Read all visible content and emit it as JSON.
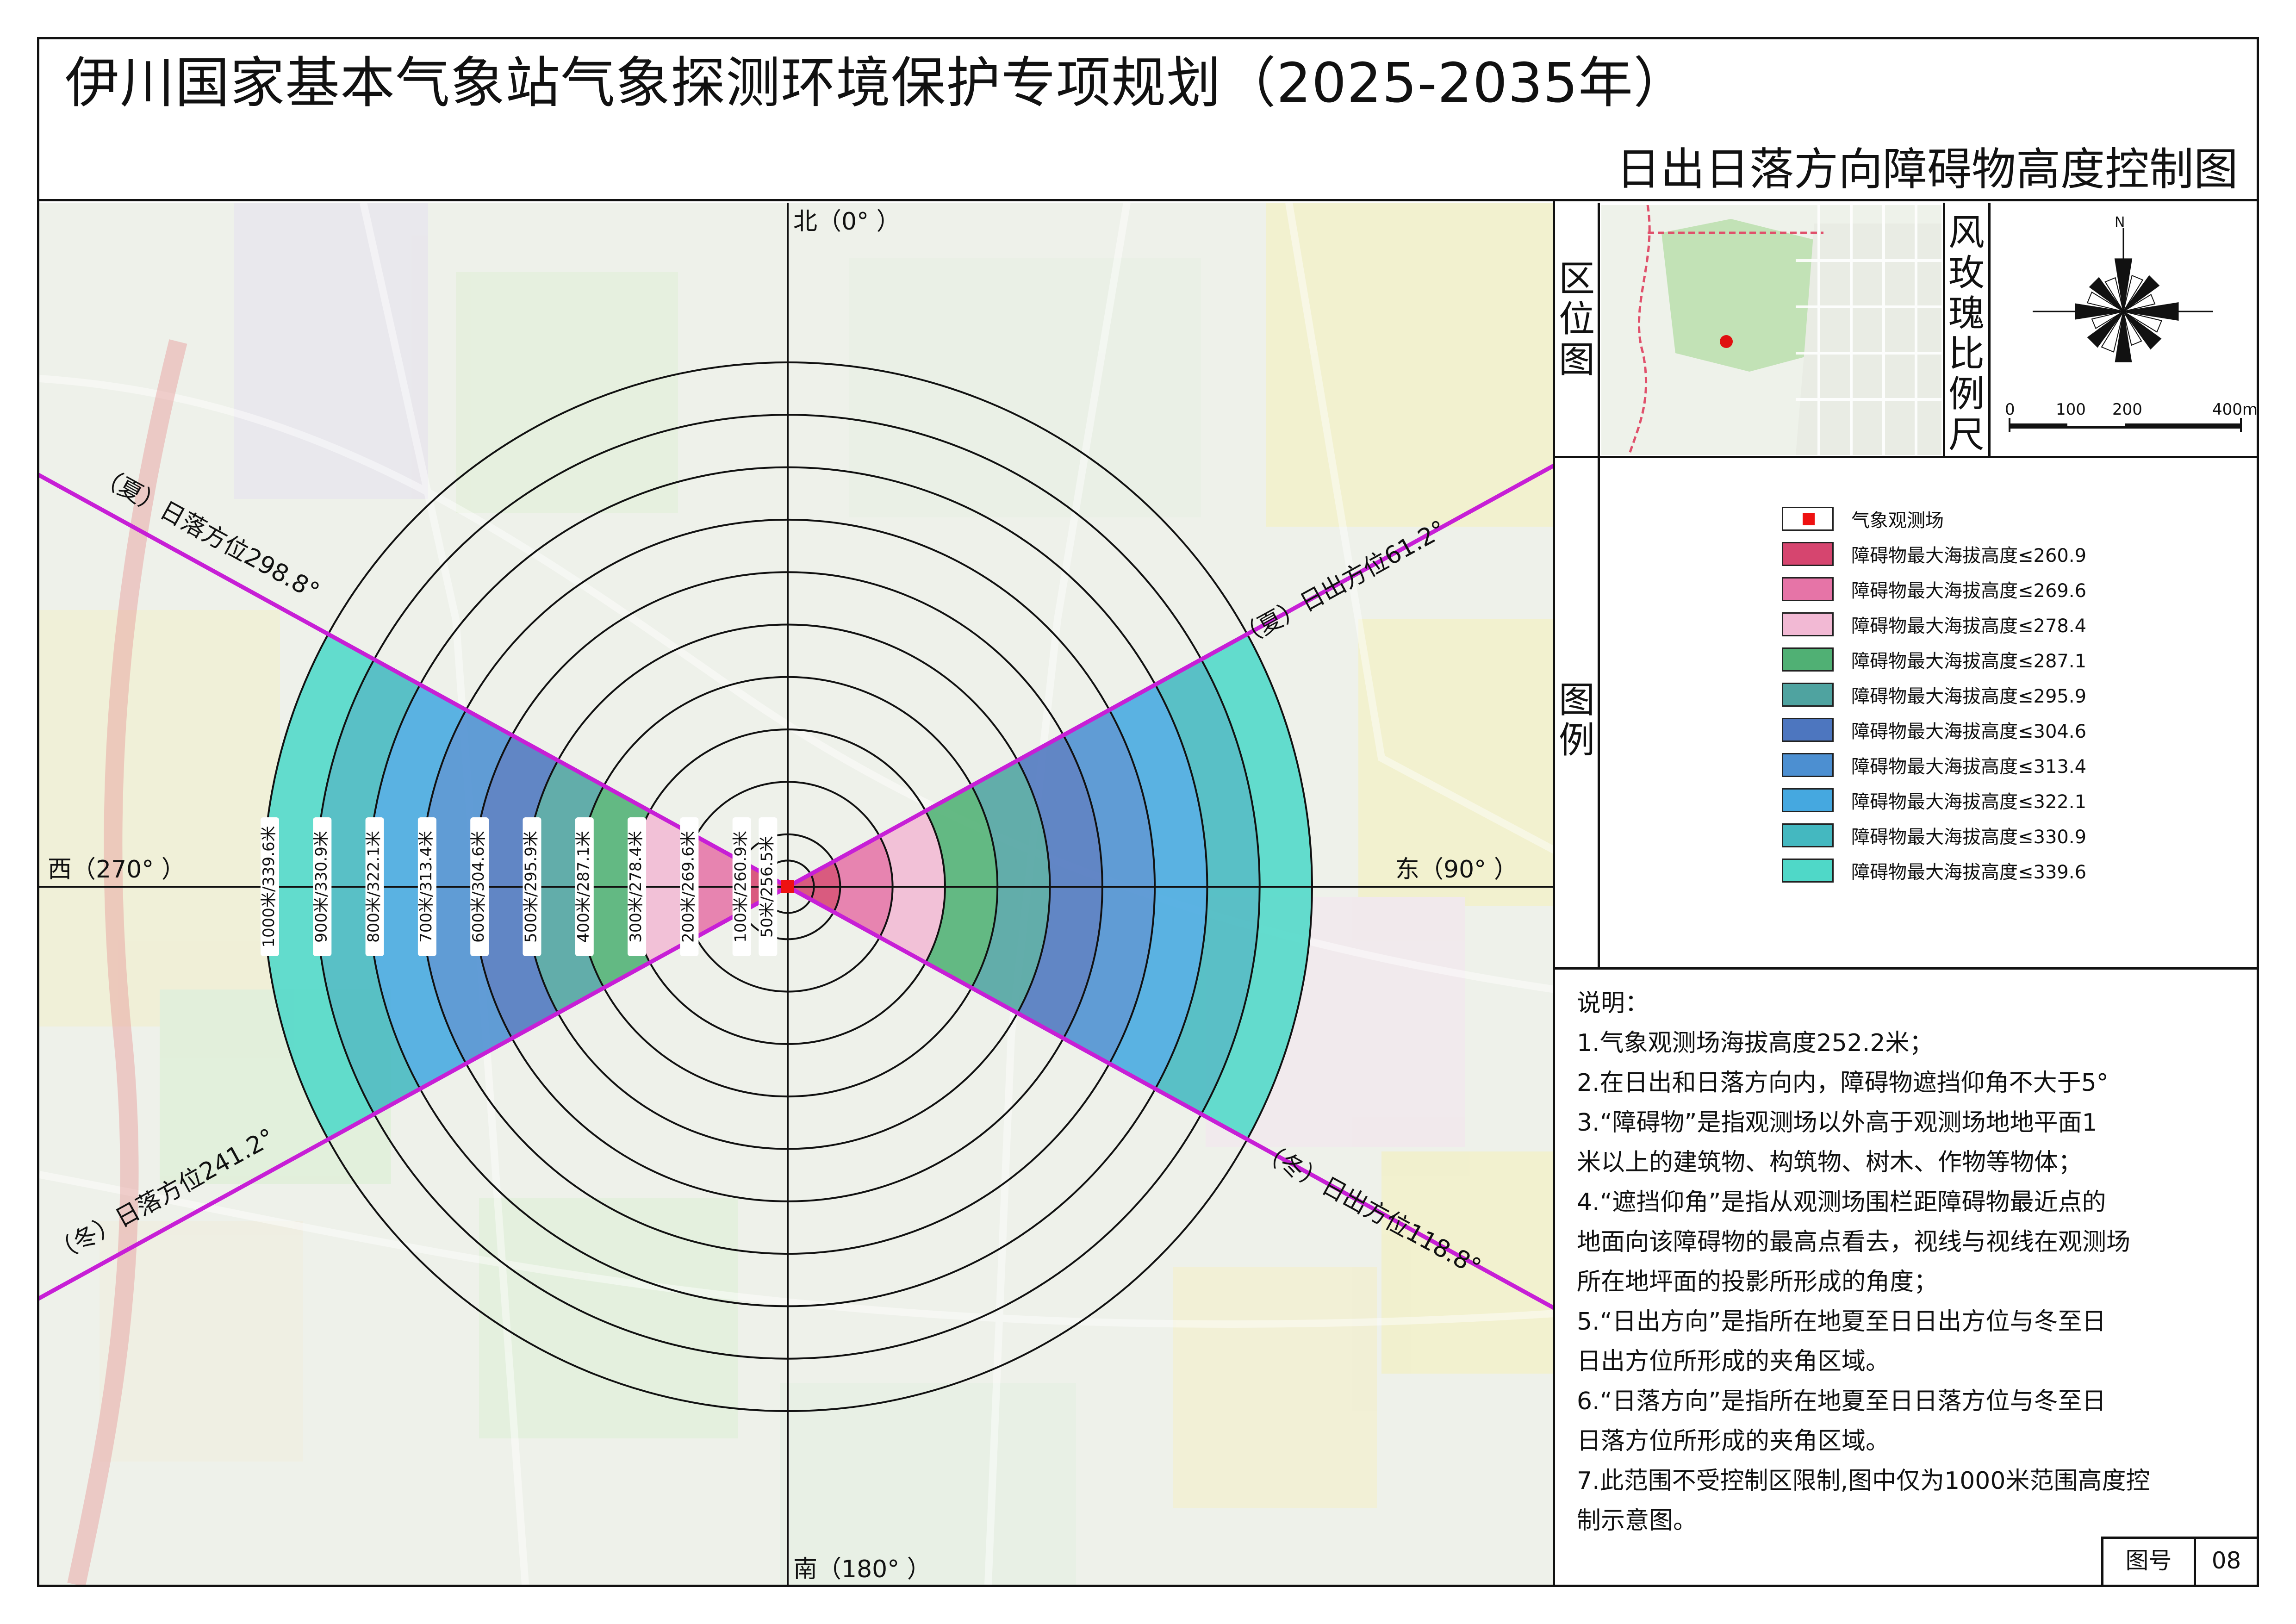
{
  "header": {
    "title": "伊川国家基本气象站气象探测环境保护专项规划（2025-2035年）",
    "subtitle": "日出日落方向障碍物高度控制图"
  },
  "compass": {
    "north": "北（0° ）",
    "south": "南（180° ）",
    "east": "东（90° ）",
    "west": "西（270° ）"
  },
  "sun_lines": {
    "summer_sunset": "（夏）日落方位298.8°",
    "summer_sunrise": "（夏）日出方位61.2°",
    "winter_sunset": "（冬）日落方位241.2°",
    "winter_sunrise": "（冬）日出方位118.8°",
    "summer_sunrise_deg": 61.2,
    "winter_sunrise_deg": 118.8,
    "winter_sunset_deg": 241.2,
    "summer_sunset_deg": 298.8,
    "line_color": "#c71fd6"
  },
  "rings": [
    {
      "label": "50米/256.5米",
      "distance_m": 50,
      "height_m": 256.5
    },
    {
      "label": "100米/260.9米",
      "distance_m": 100,
      "height_m": 260.9
    },
    {
      "label": "200米/269.6米",
      "distance_m": 200,
      "height_m": 269.6
    },
    {
      "label": "300米/278.4米",
      "distance_m": 300,
      "height_m": 278.4
    },
    {
      "label": "400米/287.1米",
      "distance_m": 400,
      "height_m": 287.1
    },
    {
      "label": "500米/295.9米",
      "distance_m": 500,
      "height_m": 295.9
    },
    {
      "label": "600米/304.6米",
      "distance_m": 600,
      "height_m": 304.6
    },
    {
      "label": "700米/313.4米",
      "distance_m": 700,
      "height_m": 313.4
    },
    {
      "label": "800米/322.1米",
      "distance_m": 800,
      "height_m": 322.1
    },
    {
      "label": "900米/330.9米",
      "distance_m": 900,
      "height_m": 330.9
    },
    {
      "label": "1000米/339.6米",
      "distance_m": 1000,
      "height_m": 339.6
    }
  ],
  "side_panel": {
    "location_map_label": "区位图",
    "rose_scale_label": "风玫瑰比例尺",
    "north_letter": "N",
    "scale_ticks": [
      "0",
      "100",
      "200",
      "400m"
    ],
    "legend_label": "图例"
  },
  "legend": [
    {
      "label": "气象观测场",
      "color": "#ffffff",
      "marker_color": "#ee1111"
    },
    {
      "label": "障碍物最大海拔高度≤260.9",
      "color": "#d6456f"
    },
    {
      "label": "障碍物最大海拔高度≤269.6",
      "color": "#e674a7"
    },
    {
      "label": "障碍物最大海拔高度≤278.4",
      "color": "#f2b9d4"
    },
    {
      "label": "障碍物最大海拔高度≤287.1",
      "color": "#50b074"
    },
    {
      "label": "障碍物最大海拔高度≤295.9",
      "color": "#4fa3a0"
    },
    {
      "label": "障碍物最大海拔高度≤304.6",
      "color": "#4d76bf"
    },
    {
      "label": "障碍物最大海拔高度≤313.4",
      "color": "#4c8fd1"
    },
    {
      "label": "障碍物最大海拔高度≤322.1",
      "color": "#45a8e0"
    },
    {
      "label": "障碍物最大海拔高度≤330.9",
      "color": "#44b8c0"
    },
    {
      "label": "障碍物最大海拔高度≤339.6",
      "color": "#4fd8c8"
    }
  ],
  "notes": {
    "heading": "说明：",
    "lines": [
      "1.气象观测场海拔高度252.2米；",
      "2.在日出和日落方向内，障碍物遮挡仰角不大于5°",
      "3.“障碍物”是指观测场以外高于观测场地地平面1",
      "米以上的建筑物、构筑物、树木、作物等物体；",
      "4.“遮挡仰角”是指从观测场围栏距障碍物最近点的",
      "地面向该障碍物的最高点看去，视线与视线在观测场",
      "所在地坪面的投影所形成的角度；",
      "5.“日出方向”是指所在地夏至日日出方位与冬至日",
      "日出方位所形成的夹角区域。",
      "6.“日落方向”是指所在地夏至日日落方位与冬至日",
      "日落方位所形成的夹角区域。",
      "7.此范围不受控制区限制,图中仅为1000米范围高度控",
      "制示意图。"
    ]
  },
  "figure_number": {
    "label": "图号",
    "value": "08"
  }
}
